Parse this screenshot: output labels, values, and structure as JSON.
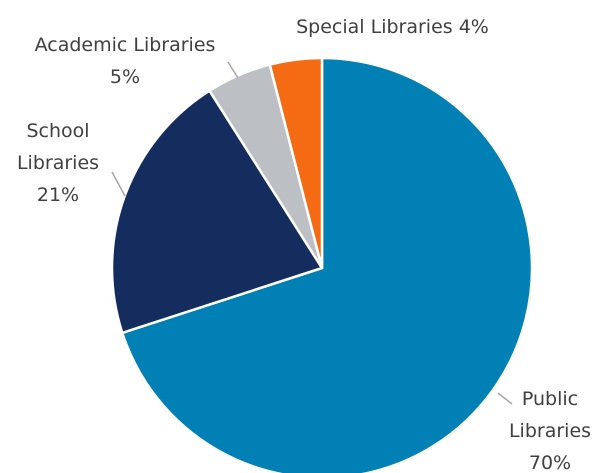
{
  "chart_data": {
    "type": "pie",
    "categories": [
      "Public Libraries",
      "School Libraries",
      "Academic Libraries",
      "Special Libraries"
    ],
    "values": [
      70,
      21,
      5,
      4
    ],
    "value_labels": [
      "70%",
      "21%",
      "5%",
      "4%"
    ],
    "colors": [
      "#0080b4",
      "#142d5e",
      "#bcc0c5",
      "#f56b13"
    ]
  }
}
